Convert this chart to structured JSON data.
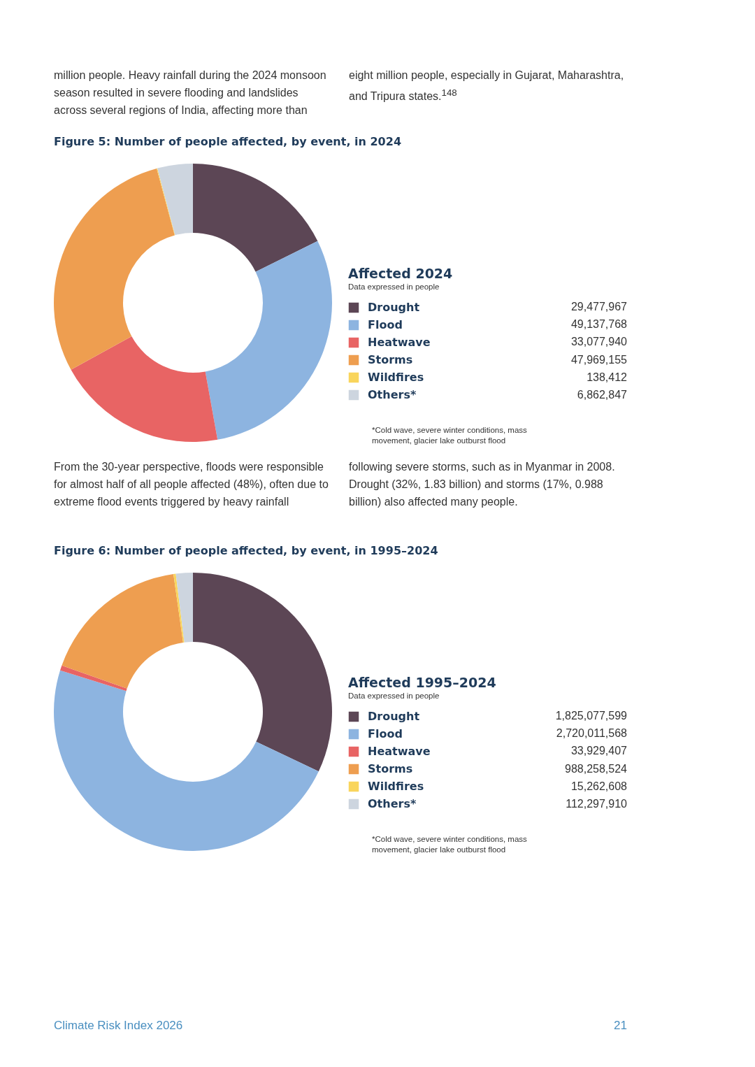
{
  "chart_data": [
    {
      "type": "donut",
      "title": "Figure 5: Number of people affected, by event, in 2024",
      "subtitle": "Data expressed in people",
      "legend_title": "Affected 2024",
      "legend": "right",
      "value_labels": [
        "29,477,967",
        "49,137,768",
        "33,077,940",
        "47,969,155",
        "138,412",
        "6,862,847"
      ],
      "categories": [
        "Drought",
        "Flood",
        "Heatwave",
        "Storms",
        "Wildfires",
        "Others*"
      ],
      "values": [
        29477967,
        49137768,
        33077940,
        47969155,
        138412,
        6862847
      ],
      "colors": [
        "#5c4655",
        "#8db4e0",
        "#e86464",
        "#ee9e50",
        "#f9d55c",
        "#cdd5df"
      ],
      "annotations": [
        "*Cold wave, severe winter conditions, mass movement, glacier lake outburst flood",
        "million people. Heavy rainfall during the 2024 monsoon season resulted in severe flooding and landslides across several regions of India, affecting more than eight million people, especially in Gujarat, Maharashtra, and Tripura states.$^{148}$"
      ]
    },
    {
      "type": "donut",
      "title": "Figure 6: Number of people affected, by event, in 1995–2024",
      "subtitle": "Data expressed in people",
      "legend_title": "Affected 1995–2024",
      "legend": "right",
      "value_labels": [
        "1,825,077,599",
        "2,720,011,568",
        "33,929,407",
        "988,258,524",
        "15,262,608",
        "112,297,910"
      ],
      "categories": [
        "Drought",
        "Flood",
        "Heatwave",
        "Storms",
        "Wildfires",
        "Others*"
      ],
      "values": [
        1825077599,
        2720011568,
        33929407,
        988258524,
        15262608,
        112297910
      ],
      "colors": [
        "#5c4655",
        "#8db4e0",
        "#e86464",
        "#ee9e50",
        "#f9d55c",
        "#cdd5df"
      ],
      "annotations": [
        "*Cold wave, severe winter conditions, mass movement, glacier lake outburst flood",
        "From the 30-year perspective, floods were responsible for almost half of all people affected (48%), often due to extreme flood events triggered by heavy rainfall following severe storms, such as in Myanmar in 2008. Drought (32%, 1.83 billion) and storms (17%, 0.988 billion) also affected many people.",
        "Climate Risk Index 2026",
        "21"
      ]
    }
  ]
}
